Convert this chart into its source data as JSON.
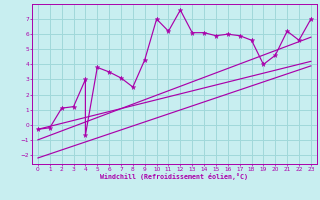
{
  "xlabel": "Windchill (Refroidissement éolien,°C)",
  "bg_color": "#c8eef0",
  "grid_color": "#a0d8da",
  "line_color": "#aa00aa",
  "xlim": [
    -0.5,
    23.5
  ],
  "ylim": [
    -2.6,
    8.0
  ],
  "xticks": [
    0,
    1,
    2,
    3,
    4,
    5,
    6,
    7,
    8,
    9,
    10,
    11,
    12,
    13,
    14,
    15,
    16,
    17,
    18,
    19,
    20,
    21,
    22,
    23
  ],
  "yticks": [
    -2,
    -1,
    0,
    1,
    2,
    3,
    4,
    5,
    6,
    7
  ],
  "scatter_x": [
    0,
    1,
    2,
    3,
    4,
    4,
    5,
    6,
    7,
    8,
    9,
    10,
    11,
    12,
    13,
    14,
    15,
    16,
    17,
    18,
    19,
    20,
    21,
    22,
    23
  ],
  "scatter_y": [
    -0.3,
    -0.2,
    1.1,
    1.2,
    3.0,
    -0.7,
    3.8,
    3.5,
    3.1,
    2.5,
    4.3,
    7.0,
    6.2,
    7.6,
    6.1,
    6.1,
    5.9,
    6.0,
    5.9,
    5.6,
    4.0,
    4.6,
    6.2,
    5.6,
    7.0
  ],
  "line1_x": [
    0,
    23
  ],
  "line1_y": [
    -0.3,
    4.2
  ],
  "line2_x": [
    0,
    23
  ],
  "line2_y": [
    -1.0,
    5.8
  ],
  "line3_x": [
    0,
    23
  ],
  "line3_y": [
    -2.2,
    3.9
  ]
}
